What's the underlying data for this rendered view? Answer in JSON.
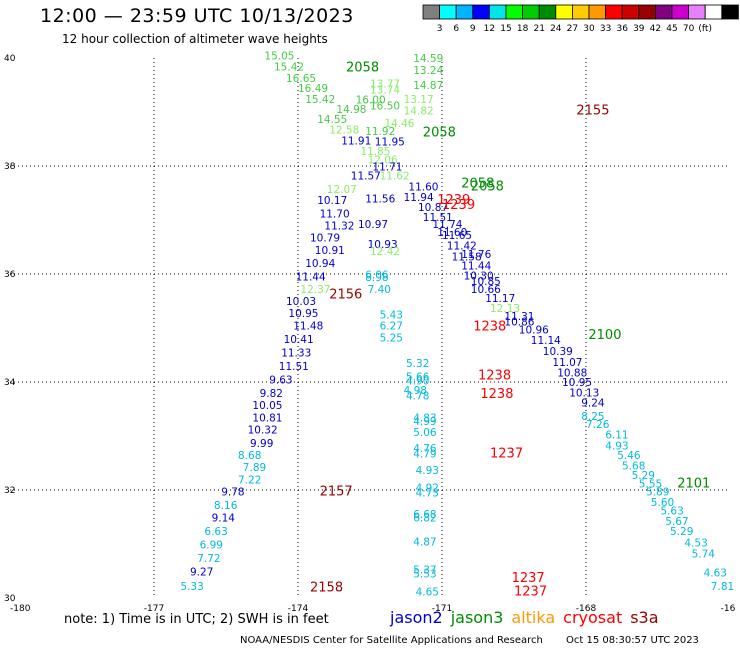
{
  "title": "12:00 — 23:59 UTC 10/13/2023",
  "subtitle": "12 hour collection of altimeter wave heights",
  "legend": {
    "colors": [
      "#808080",
      "#00ffff",
      "#00b4ff",
      "#0000ff",
      "#00e6e6",
      "#00ff00",
      "#00cc00",
      "#008c00",
      "#ffff00",
      "#ffcc00",
      "#ff9900",
      "#ff0000",
      "#cc0000",
      "#990000",
      "#800080",
      "#cc00cc",
      "#e680ff",
      "#ffffff",
      "#000000"
    ],
    "labels": [
      "3",
      "6",
      "9",
      "12",
      "15",
      "18",
      "21",
      "24",
      "27",
      "30",
      "33",
      "36",
      "39",
      "42",
      "45",
      "70",
      "(ft)"
    ]
  },
  "axes": {
    "lon_ticks": [
      "-180",
      "-177",
      "-174",
      "-171",
      "-168",
      "-16"
    ],
    "lat_ticks": [
      "40",
      "38",
      "36",
      "34",
      "32",
      "30"
    ]
  },
  "note": "note:  1) Time is in UTC;  2) SWH is in feet",
  "satellites": [
    {
      "name": "jason2",
      "color": "#0000cc"
    },
    {
      "name": "jason3",
      "color": "#008c00"
    },
    {
      "name": "altika",
      "color": "#ff9900"
    },
    {
      "name": "cryosat",
      "color": "#ff0000"
    },
    {
      "name": "s3a",
      "color": "#990000"
    }
  ],
  "credit": "NOAA/NESDIS Center for Satellite Applications and Research",
  "timestamp": "Oct 15 08:30:57 UTC 2023",
  "pass_labels": [
    {
      "text": "2058",
      "lon": -173.0,
      "lat": 39.75,
      "c": "#008c00"
    },
    {
      "text": "2155",
      "lon": -168.2,
      "lat": 38.95,
      "c": "#990000"
    },
    {
      "text": "2058",
      "lon": -171.4,
      "lat": 38.55,
      "c": "#008c00"
    },
    {
      "text": "2058",
      "lon": -170.6,
      "lat": 37.6,
      "c": "#008c00"
    },
    {
      "text": "2058",
      "lon": -170.4,
      "lat": 37.55,
      "c": "#008c00"
    },
    {
      "text": "1239",
      "lon": -171.1,
      "lat": 37.3,
      "c": "#ff0000"
    },
    {
      "text": "1239",
      "lon": -171.0,
      "lat": 37.2,
      "c": "#ff0000"
    },
    {
      "text": "2156",
      "lon": -173.35,
      "lat": 35.55,
      "c": "#990000"
    },
    {
      "text": "1238",
      "lon": -170.35,
      "lat": 34.95,
      "c": "#ff0000"
    },
    {
      "text": "2100",
      "lon": -167.95,
      "lat": 34.8,
      "c": "#008c00"
    },
    {
      "text": "1238",
      "lon": -170.25,
      "lat": 34.05,
      "c": "#ff0000"
    },
    {
      "text": "1238",
      "lon": -170.2,
      "lat": 33.7,
      "c": "#ff0000"
    },
    {
      "text": "1237",
      "lon": -170.0,
      "lat": 32.6,
      "c": "#ff0000"
    },
    {
      "text": "2101",
      "lon": -166.1,
      "lat": 32.05,
      "c": "#008c00"
    },
    {
      "text": "2157",
      "lon": -173.55,
      "lat": 31.9,
      "c": "#990000"
    },
    {
      "text": "1237",
      "lon": -169.55,
      "lat": 30.3,
      "c": "#ff0000"
    },
    {
      "text": "2158",
      "lon": -173.75,
      "lat": 30.12,
      "c": "#990000"
    },
    {
      "text": "1237",
      "lon": -169.5,
      "lat": 30.05,
      "c": "#ff0000"
    }
  ],
  "wave_labels": [
    {
      "text": "15.05",
      "lon": -174.7,
      "lat": 39.97,
      "c": "#44cc44"
    },
    {
      "text": "14.59",
      "lon": -171.6,
      "lat": 39.93,
      "c": "#44cc44"
    },
    {
      "text": "15.42",
      "lon": -174.5,
      "lat": 39.77,
      "c": "#44cc44"
    },
    {
      "text": "13.24",
      "lon": -171.6,
      "lat": 39.7,
      "c": "#44cc44"
    },
    {
      "text": "16.65",
      "lon": -174.25,
      "lat": 39.56,
      "c": "#44cc44"
    },
    {
      "text": "13.77",
      "lon": -172.5,
      "lat": 39.45,
      "c": "#88ee66"
    },
    {
      "text": "14.87",
      "lon": -171.6,
      "lat": 39.43,
      "c": "#44cc44"
    },
    {
      "text": "16.49",
      "lon": -174.0,
      "lat": 39.37,
      "c": "#44cc44"
    },
    {
      "text": "13.74",
      "lon": -172.5,
      "lat": 39.34,
      "c": "#88ee66"
    },
    {
      "text": "15.42",
      "lon": -173.85,
      "lat": 39.17,
      "c": "#44cc44"
    },
    {
      "text": "16.00",
      "lon": -172.8,
      "lat": 39.16,
      "c": "#44cc44"
    },
    {
      "text": "13.17",
      "lon": -171.8,
      "lat": 39.17,
      "c": "#88ee66"
    },
    {
      "text": "16.50",
      "lon": -172.5,
      "lat": 39.05,
      "c": "#44cc44"
    },
    {
      "text": "14.98",
      "lon": -173.2,
      "lat": 38.98,
      "c": "#44cc44"
    },
    {
      "text": "14.82",
      "lon": -171.8,
      "lat": 38.95,
      "c": "#88ee66"
    },
    {
      "text": "14.55",
      "lon": -173.6,
      "lat": 38.8,
      "c": "#44cc44"
    },
    {
      "text": "14.46",
      "lon": -172.2,
      "lat": 38.72,
      "c": "#88ee66"
    },
    {
      "text": "12.58",
      "lon": -173.35,
      "lat": 38.6,
      "c": "#88ee66"
    },
    {
      "text": "11.92",
      "lon": -172.6,
      "lat": 38.57,
      "c": "#44cc44"
    },
    {
      "text": "11.91",
      "lon": -173.1,
      "lat": 38.4,
      "c": "#0000cc"
    },
    {
      "text": "11.95",
      "lon": -172.4,
      "lat": 38.38,
      "c": "#0000cc"
    },
    {
      "text": "11.85",
      "lon": -172.7,
      "lat": 38.2,
      "c": "#88ee66"
    },
    {
      "text": "12.06",
      "lon": -172.55,
      "lat": 38.05,
      "c": "#88ee66"
    },
    {
      "text": "11.71",
      "lon": -172.45,
      "lat": 37.92,
      "c": "#0000cc"
    },
    {
      "text": "11.57",
      "lon": -172.9,
      "lat": 37.75,
      "c": "#0000cc"
    },
    {
      "text": "11.62",
      "lon": -172.3,
      "lat": 37.75,
      "c": "#88ee66"
    },
    {
      "text": "12.07",
      "lon": -173.4,
      "lat": 37.5,
      "c": "#88ee66"
    },
    {
      "text": "11.60",
      "lon": -171.7,
      "lat": 37.55,
      "c": "#0000cc"
    },
    {
      "text": "10.17",
      "lon": -173.6,
      "lat": 37.3,
      "c": "#0000cc"
    },
    {
      "text": "11.56",
      "lon": -172.6,
      "lat": 37.32,
      "c": "#0000cc"
    },
    {
      "text": "11.94",
      "lon": -171.8,
      "lat": 37.35,
      "c": "#0000cc"
    },
    {
      "text": "10.87",
      "lon": -171.5,
      "lat": 37.17,
      "c": "#0000cc"
    },
    {
      "text": "11.70",
      "lon": -173.55,
      "lat": 37.05,
      "c": "#0000cc"
    },
    {
      "text": "11.51",
      "lon": -171.4,
      "lat": 36.98,
      "c": "#0000cc"
    },
    {
      "text": "11.32",
      "lon": -173.45,
      "lat": 36.82,
      "c": "#0000cc"
    },
    {
      "text": "10.97",
      "lon": -172.75,
      "lat": 36.85,
      "c": "#0000cc"
    },
    {
      "text": "11.74",
      "lon": -171.2,
      "lat": 36.85,
      "c": "#0000cc"
    },
    {
      "text": "11.60",
      "lon": -171.1,
      "lat": 36.7,
      "c": "#0000cc"
    },
    {
      "text": "10.79",
      "lon": -173.75,
      "lat": 36.6,
      "c": "#0000cc"
    },
    {
      "text": "11.65",
      "lon": -171.0,
      "lat": 36.65,
      "c": "#0000cc"
    },
    {
      "text": "10.93",
      "lon": -172.55,
      "lat": 36.48,
      "c": "#0000cc"
    },
    {
      "text": "11.42",
      "lon": -170.9,
      "lat": 36.45,
      "c": "#0000cc"
    },
    {
      "text": "10.91",
      "lon": -173.65,
      "lat": 36.37,
      "c": "#0000cc"
    },
    {
      "text": "12.42",
      "lon": -172.5,
      "lat": 36.35,
      "c": "#88ee66"
    },
    {
      "text": "11.76",
      "lon": -170.6,
      "lat": 36.3,
      "c": "#0000cc"
    },
    {
      "text": "11.58",
      "lon": -170.8,
      "lat": 36.25,
      "c": "#0000cc"
    },
    {
      "text": "10.94",
      "lon": -173.85,
      "lat": 36.13,
      "c": "#0000cc"
    },
    {
      "text": "11.44",
      "lon": -170.6,
      "lat": 36.08,
      "c": "#0000cc"
    },
    {
      "text": "11.44",
      "lon": -174.05,
      "lat": 35.88,
      "c": "#0000cc"
    },
    {
      "text": "6.06",
      "lon": -172.6,
      "lat": 35.92,
      "c": "#00bbdd"
    },
    {
      "text": "8.98",
      "lon": -172.6,
      "lat": 35.87,
      "c": "#00bbdd"
    },
    {
      "text": "10.30",
      "lon": -170.55,
      "lat": 35.9,
      "c": "#0000cc"
    },
    {
      "text": "10.85",
      "lon": -170.4,
      "lat": 35.8,
      "c": "#0000cc"
    },
    {
      "text": "10.66",
      "lon": -170.4,
      "lat": 35.65,
      "c": "#0000cc"
    },
    {
      "text": "12.37",
      "lon": -173.95,
      "lat": 35.65,
      "c": "#88ee66"
    },
    {
      "text": "7.40",
      "lon": -172.55,
      "lat": 35.65,
      "c": "#00bbdd"
    },
    {
      "text": "11.17",
      "lon": -170.1,
      "lat": 35.48,
      "c": "#0000cc"
    },
    {
      "text": "10.03",
      "lon": -174.25,
      "lat": 35.43,
      "c": "#0000cc"
    },
    {
      "text": "12.13",
      "lon": -170.0,
      "lat": 35.3,
      "c": "#88ee66"
    },
    {
      "text": "10.95",
      "lon": -174.2,
      "lat": 35.2,
      "c": "#0000cc"
    },
    {
      "text": "5.43",
      "lon": -172.3,
      "lat": 35.18,
      "c": "#00bbdd"
    },
    {
      "text": "11.31",
      "lon": -169.7,
      "lat": 35.15,
      "c": "#0000cc"
    },
    {
      "text": "10.86",
      "lon": -169.7,
      "lat": 35.05,
      "c": "#0000cc"
    },
    {
      "text": "11.48",
      "lon": -174.1,
      "lat": 34.97,
      "c": "#0000cc"
    },
    {
      "text": "6.27",
      "lon": -172.3,
      "lat": 34.97,
      "c": "#00bbdd"
    },
    {
      "text": "10.96",
      "lon": -169.4,
      "lat": 34.9,
      "c": "#0000cc"
    },
    {
      "text": "10.41",
      "lon": -174.3,
      "lat": 34.72,
      "c": "#0000cc"
    },
    {
      "text": "5.25",
      "lon": -172.3,
      "lat": 34.75,
      "c": "#00bbdd"
    },
    {
      "text": "11.14",
      "lon": -169.15,
      "lat": 34.7,
      "c": "#0000cc"
    },
    {
      "text": "10.39",
      "lon": -168.9,
      "lat": 34.5,
      "c": "#0000cc"
    },
    {
      "text": "11.33",
      "lon": -174.35,
      "lat": 34.47,
      "c": "#0000cc"
    },
    {
      "text": "11.07",
      "lon": -168.7,
      "lat": 34.3,
      "c": "#0000cc"
    },
    {
      "text": "5.32",
      "lon": -171.75,
      "lat": 34.28,
      "c": "#00bbdd"
    },
    {
      "text": "11.51",
      "lon": -174.4,
      "lat": 34.22,
      "c": "#0000cc"
    },
    {
      "text": "10.88",
      "lon": -168.6,
      "lat": 34.1,
      "c": "#0000cc"
    },
    {
      "text": "5.66",
      "lon": -171.75,
      "lat": 34.03,
      "c": "#00bbdd"
    },
    {
      "text": "4.90",
      "lon": -171.75,
      "lat": 33.95,
      "c": "#00bbdd"
    },
    {
      "text": "9.63",
      "lon": -174.6,
      "lat": 33.97,
      "c": "#0000cc"
    },
    {
      "text": "10.95",
      "lon": -168.5,
      "lat": 33.93,
      "c": "#0000cc"
    },
    {
      "text": "4.98",
      "lon": -171.8,
      "lat": 33.78,
      "c": "#00bbdd"
    },
    {
      "text": "9.82",
      "lon": -174.8,
      "lat": 33.72,
      "c": "#0000cc"
    },
    {
      "text": "10.13",
      "lon": -168.35,
      "lat": 33.73,
      "c": "#0000cc"
    },
    {
      "text": "4.78",
      "lon": -171.75,
      "lat": 33.68,
      "c": "#00bbdd"
    },
    {
      "text": "10.05",
      "lon": -174.95,
      "lat": 33.5,
      "c": "#0000cc"
    },
    {
      "text": "9.24",
      "lon": -168.1,
      "lat": 33.55,
      "c": "#0000cc"
    },
    {
      "text": "8.25",
      "lon": -168.1,
      "lat": 33.3,
      "c": "#00bbdd"
    },
    {
      "text": "10.81",
      "lon": -174.95,
      "lat": 33.27,
      "c": "#0000cc"
    },
    {
      "text": "4.83",
      "lon": -171.6,
      "lat": 33.27,
      "c": "#00bbdd"
    },
    {
      "text": "4.99",
      "lon": -171.6,
      "lat": 33.2,
      "c": "#00bbdd"
    },
    {
      "text": "7.26",
      "lon": -168.0,
      "lat": 33.15,
      "c": "#00bbdd"
    },
    {
      "text": "10.32",
      "lon": -175.05,
      "lat": 33.05,
      "c": "#0000cc"
    },
    {
      "text": "5.06",
      "lon": -171.6,
      "lat": 33.0,
      "c": "#00bbdd"
    },
    {
      "text": "6.11",
      "lon": -167.6,
      "lat": 32.95,
      "c": "#00bbdd"
    },
    {
      "text": "9.99",
      "lon": -175.0,
      "lat": 32.8,
      "c": "#0000cc"
    },
    {
      "text": "4.93",
      "lon": -167.6,
      "lat": 32.75,
      "c": "#00bbdd"
    },
    {
      "text": "4.76",
      "lon": -171.6,
      "lat": 32.7,
      "c": "#00bbdd"
    },
    {
      "text": "5.46",
      "lon": -167.35,
      "lat": 32.57,
      "c": "#00bbdd"
    },
    {
      "text": "4.79",
      "lon": -171.6,
      "lat": 32.6,
      "c": "#00bbdd"
    },
    {
      "text": "8.68",
      "lon": -175.25,
      "lat": 32.57,
      "c": "#00bbdd"
    },
    {
      "text": "5.68",
      "lon": -167.25,
      "lat": 32.38,
      "c": "#00bbdd"
    },
    {
      "text": "7.89",
      "lon": -175.15,
      "lat": 32.35,
      "c": "#00bbdd"
    },
    {
      "text": "4.93",
      "lon": -171.55,
      "lat": 32.3,
      "c": "#00bbdd"
    },
    {
      "text": "5.29",
      "lon": -167.05,
      "lat": 32.2,
      "c": "#00bbdd"
    },
    {
      "text": "7.22",
      "lon": -175.25,
      "lat": 32.12,
      "c": "#00bbdd"
    },
    {
      "text": "5.55",
      "lon": -166.9,
      "lat": 32.05,
      "c": "#00bbdd"
    },
    {
      "text": "4.92",
      "lon": -171.55,
      "lat": 31.97,
      "c": "#00bbdd"
    },
    {
      "text": "4.73",
      "lon": -171.55,
      "lat": 31.88,
      "c": "#00bbdd"
    },
    {
      "text": "9.78",
      "lon": -175.6,
      "lat": 31.9,
      "c": "#0000cc"
    },
    {
      "text": "5.89",
      "lon": -166.75,
      "lat": 31.9,
      "c": "#00bbdd"
    },
    {
      "text": "5.60",
      "lon": -166.65,
      "lat": 31.7,
      "c": "#00bbdd"
    },
    {
      "text": "8.16",
      "lon": -175.75,
      "lat": 31.65,
      "c": "#00bbdd"
    },
    {
      "text": "5.63",
      "lon": -166.45,
      "lat": 31.55,
      "c": "#00bbdd"
    },
    {
      "text": "6.68",
      "lon": -171.6,
      "lat": 31.48,
      "c": "#00bbdd"
    },
    {
      "text": "6.82",
      "lon": -171.6,
      "lat": 31.42,
      "c": "#00bbdd"
    },
    {
      "text": "9.14",
      "lon": -175.8,
      "lat": 31.42,
      "c": "#0000cc"
    },
    {
      "text": "5.67",
      "lon": -166.35,
      "lat": 31.35,
      "c": "#00bbdd"
    },
    {
      "text": "6.63",
      "lon": -175.95,
      "lat": 31.17,
      "c": "#00bbdd"
    },
    {
      "text": "5.29",
      "lon": -166.25,
      "lat": 31.17,
      "c": "#00bbdd"
    },
    {
      "text": "4.87",
      "lon": -171.6,
      "lat": 30.97,
      "c": "#00bbdd"
    },
    {
      "text": "6.99",
      "lon": -176.05,
      "lat": 30.92,
      "c": "#00bbdd"
    },
    {
      "text": "4.53",
      "lon": -165.95,
      "lat": 30.95,
      "c": "#00bbdd"
    },
    {
      "text": "5.74",
      "lon": -165.8,
      "lat": 30.75,
      "c": "#00bbdd"
    },
    {
      "text": "7.72",
      "lon": -176.1,
      "lat": 30.67,
      "c": "#00bbdd"
    },
    {
      "text": "5.37",
      "lon": -171.6,
      "lat": 30.45,
      "c": "#00bbdd"
    },
    {
      "text": "5.53",
      "lon": -171.6,
      "lat": 30.38,
      "c": "#00bbdd"
    },
    {
      "text": "9.27",
      "lon": -176.25,
      "lat": 30.42,
      "c": "#0000cc"
    },
    {
      "text": "4.63",
      "lon": -165.55,
      "lat": 30.4,
      "c": "#00bbdd"
    },
    {
      "text": "5.33",
      "lon": -176.45,
      "lat": 30.15,
      "c": "#00bbdd"
    },
    {
      "text": "7.81",
      "lon": -165.4,
      "lat": 30.15,
      "c": "#00bbdd"
    },
    {
      "text": "4.65",
      "lon": -171.55,
      "lat": 30.05,
      "c": "#00bbdd"
    }
  ]
}
